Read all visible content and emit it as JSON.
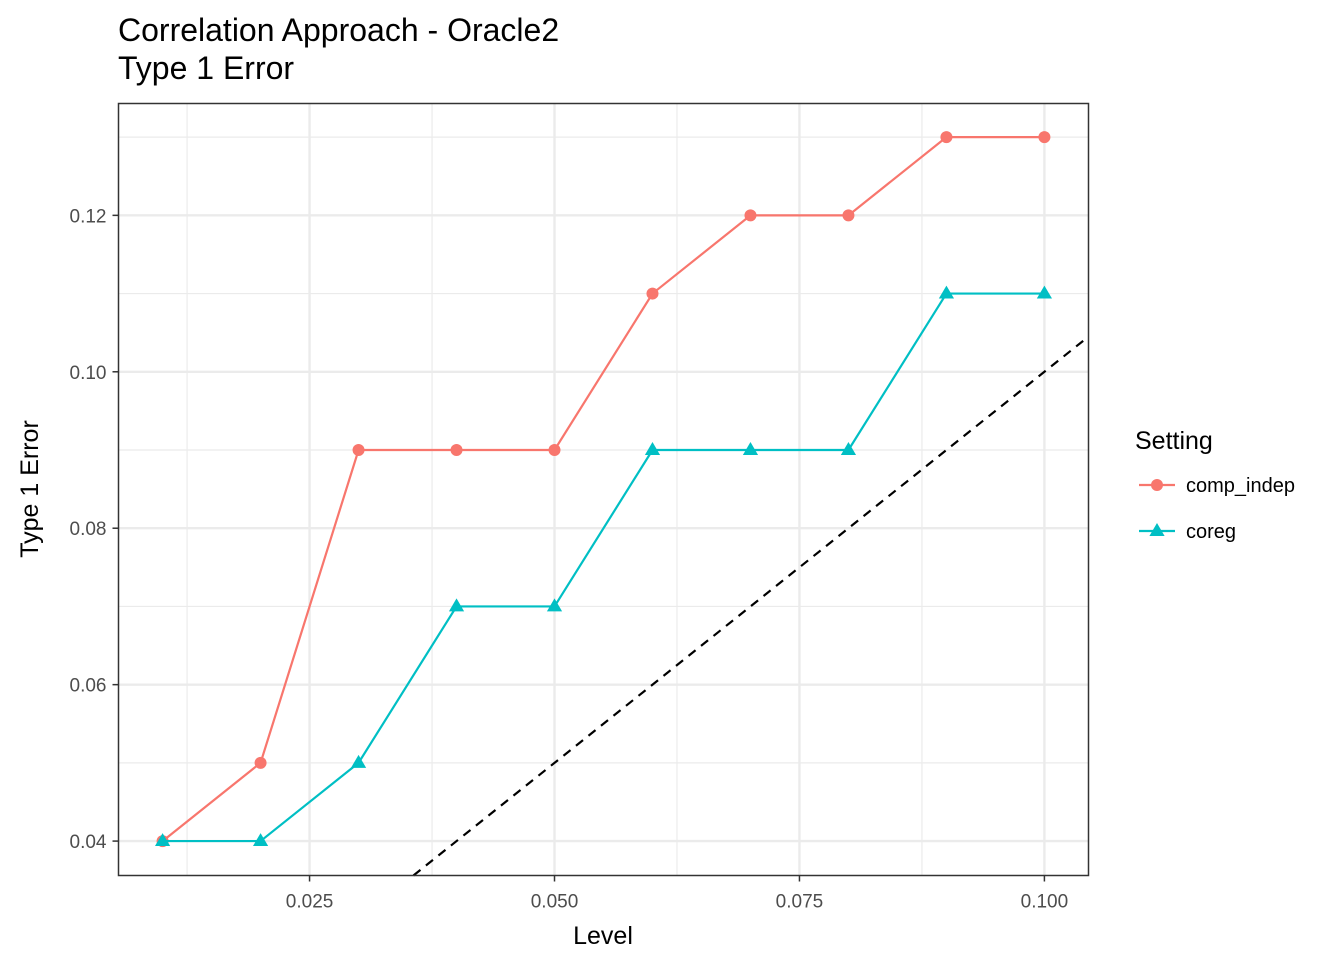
{
  "chart_data": {
    "type": "line",
    "title": "Correlation Approach - Oracle2",
    "subtitle": "Type 1 Error",
    "xlabel": "Level",
    "ylabel": "Type 1 Error",
    "xlim": [
      0.0055,
      0.1045
    ],
    "ylim": [
      0.0356,
      0.1343
    ],
    "x_ticks": [
      0.025,
      0.05,
      0.075,
      0.1
    ],
    "x_tick_labels": [
      "0.025",
      "0.050",
      "0.075",
      "0.100"
    ],
    "y_ticks": [
      0.04,
      0.06,
      0.08,
      0.1,
      0.12
    ],
    "y_tick_labels": [
      "0.04",
      "0.06",
      "0.08",
      "0.10",
      "0.12"
    ],
    "grid": true,
    "legend_title": "Setting",
    "legend_position": "right",
    "x": [
      0.01,
      0.02,
      0.03,
      0.04,
      0.05,
      0.06,
      0.07,
      0.08,
      0.09,
      0.1
    ],
    "series": [
      {
        "name": "comp_indep",
        "color": "#f8766d",
        "marker": "circle",
        "values": [
          0.04,
          0.05,
          0.09,
          0.09,
          0.09,
          0.11,
          0.12,
          0.12,
          0.13,
          0.13
        ]
      },
      {
        "name": "coreg",
        "color": "#00bfc4",
        "marker": "triangle",
        "values": [
          0.04,
          0.04,
          0.05,
          0.07,
          0.07,
          0.09,
          0.09,
          0.09,
          0.11,
          0.11
        ]
      }
    ],
    "reference_line": {
      "type": "y=x",
      "style": "dashed",
      "color": "#000000"
    }
  }
}
